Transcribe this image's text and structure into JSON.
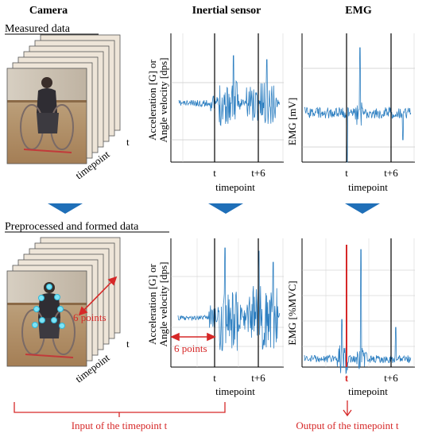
{
  "headers": {
    "camera": "Camera",
    "inertial": "Inertial sensor",
    "emg": "EMG"
  },
  "sections": {
    "measured": "Measured data",
    "processed": "Preprocessed and formed data"
  },
  "inertial_ylabel": {
    "line1": "Acceleration [G] or",
    "line2": "Angle velocity [dps]"
  },
  "emg_ylabel_top": "EMG [mV]",
  "emg_ylabel_bottom": "EMG [%MVC]",
  "ticks": {
    "t": "t",
    "t6": "t+6"
  },
  "timepoint": "timepoint",
  "camera_t": "t",
  "camera_timepoint": "timepoint",
  "six_points": "6 points",
  "input_label": "Input of the timepoint t",
  "output_label": "Output of the timepoint t",
  "colors": {
    "accent": "#d62828",
    "signal": "#2d7fc1",
    "arrow": "#1f6fb8",
    "grid": "#b0b0b0"
  }
}
